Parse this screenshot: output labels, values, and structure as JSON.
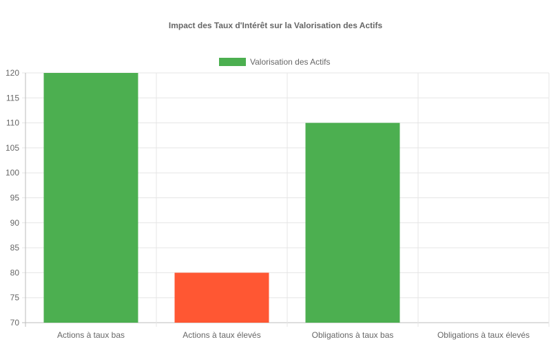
{
  "chart_data": {
    "type": "bar",
    "title": "Impact des Taux d'Intérêt sur la Valorisation des Actifs",
    "categories": [
      "Actions à taux bas",
      "Actions à taux élevés",
      "Obligations à taux bas",
      "Obligations à taux élevés"
    ],
    "series": [
      {
        "name": "Valorisation des Actifs",
        "values": [
          120,
          80,
          110,
          70
        ]
      }
    ],
    "bar_colors": [
      "#4CAF50",
      "#FF5733",
      "#4CAF50",
      "#FF5733"
    ],
    "legend_color": "#4CAF50",
    "ylim": [
      70,
      120
    ],
    "yticks": [
      70,
      75,
      80,
      85,
      90,
      95,
      100,
      105,
      110,
      115,
      120
    ],
    "grid": true,
    "legend_position": "top"
  }
}
